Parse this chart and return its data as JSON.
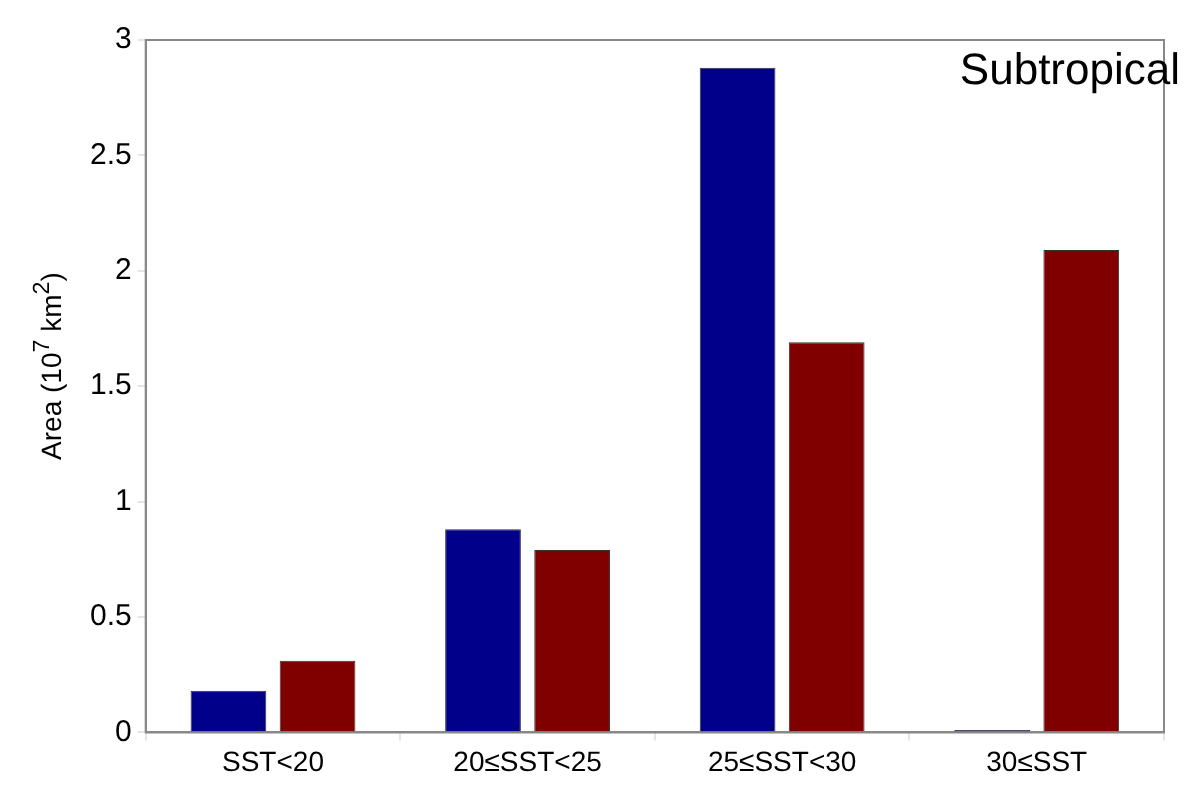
{
  "chart_data": {
    "type": "bar",
    "title": "Subtropical",
    "ylabel": "Area (10$^{7}$ km$^{2}$)",
    "categories": [
      "SST<20",
      "20≤SST<25",
      "25≤SST<30",
      "30≤SST"
    ],
    "series": [
      {
        "color": "#00008b",
        "values": [
          0.18,
          0.88,
          2.88,
          0.01
        ]
      },
      {
        "color": "#800000",
        "values": [
          0.31,
          0.79,
          1.69,
          2.09
        ]
      }
    ],
    "ylim": [
      0,
      3
    ],
    "yticks": [
      0,
      0.5,
      1,
      1.5,
      2,
      2.5,
      3
    ],
    "grid": false,
    "legend": false
  }
}
